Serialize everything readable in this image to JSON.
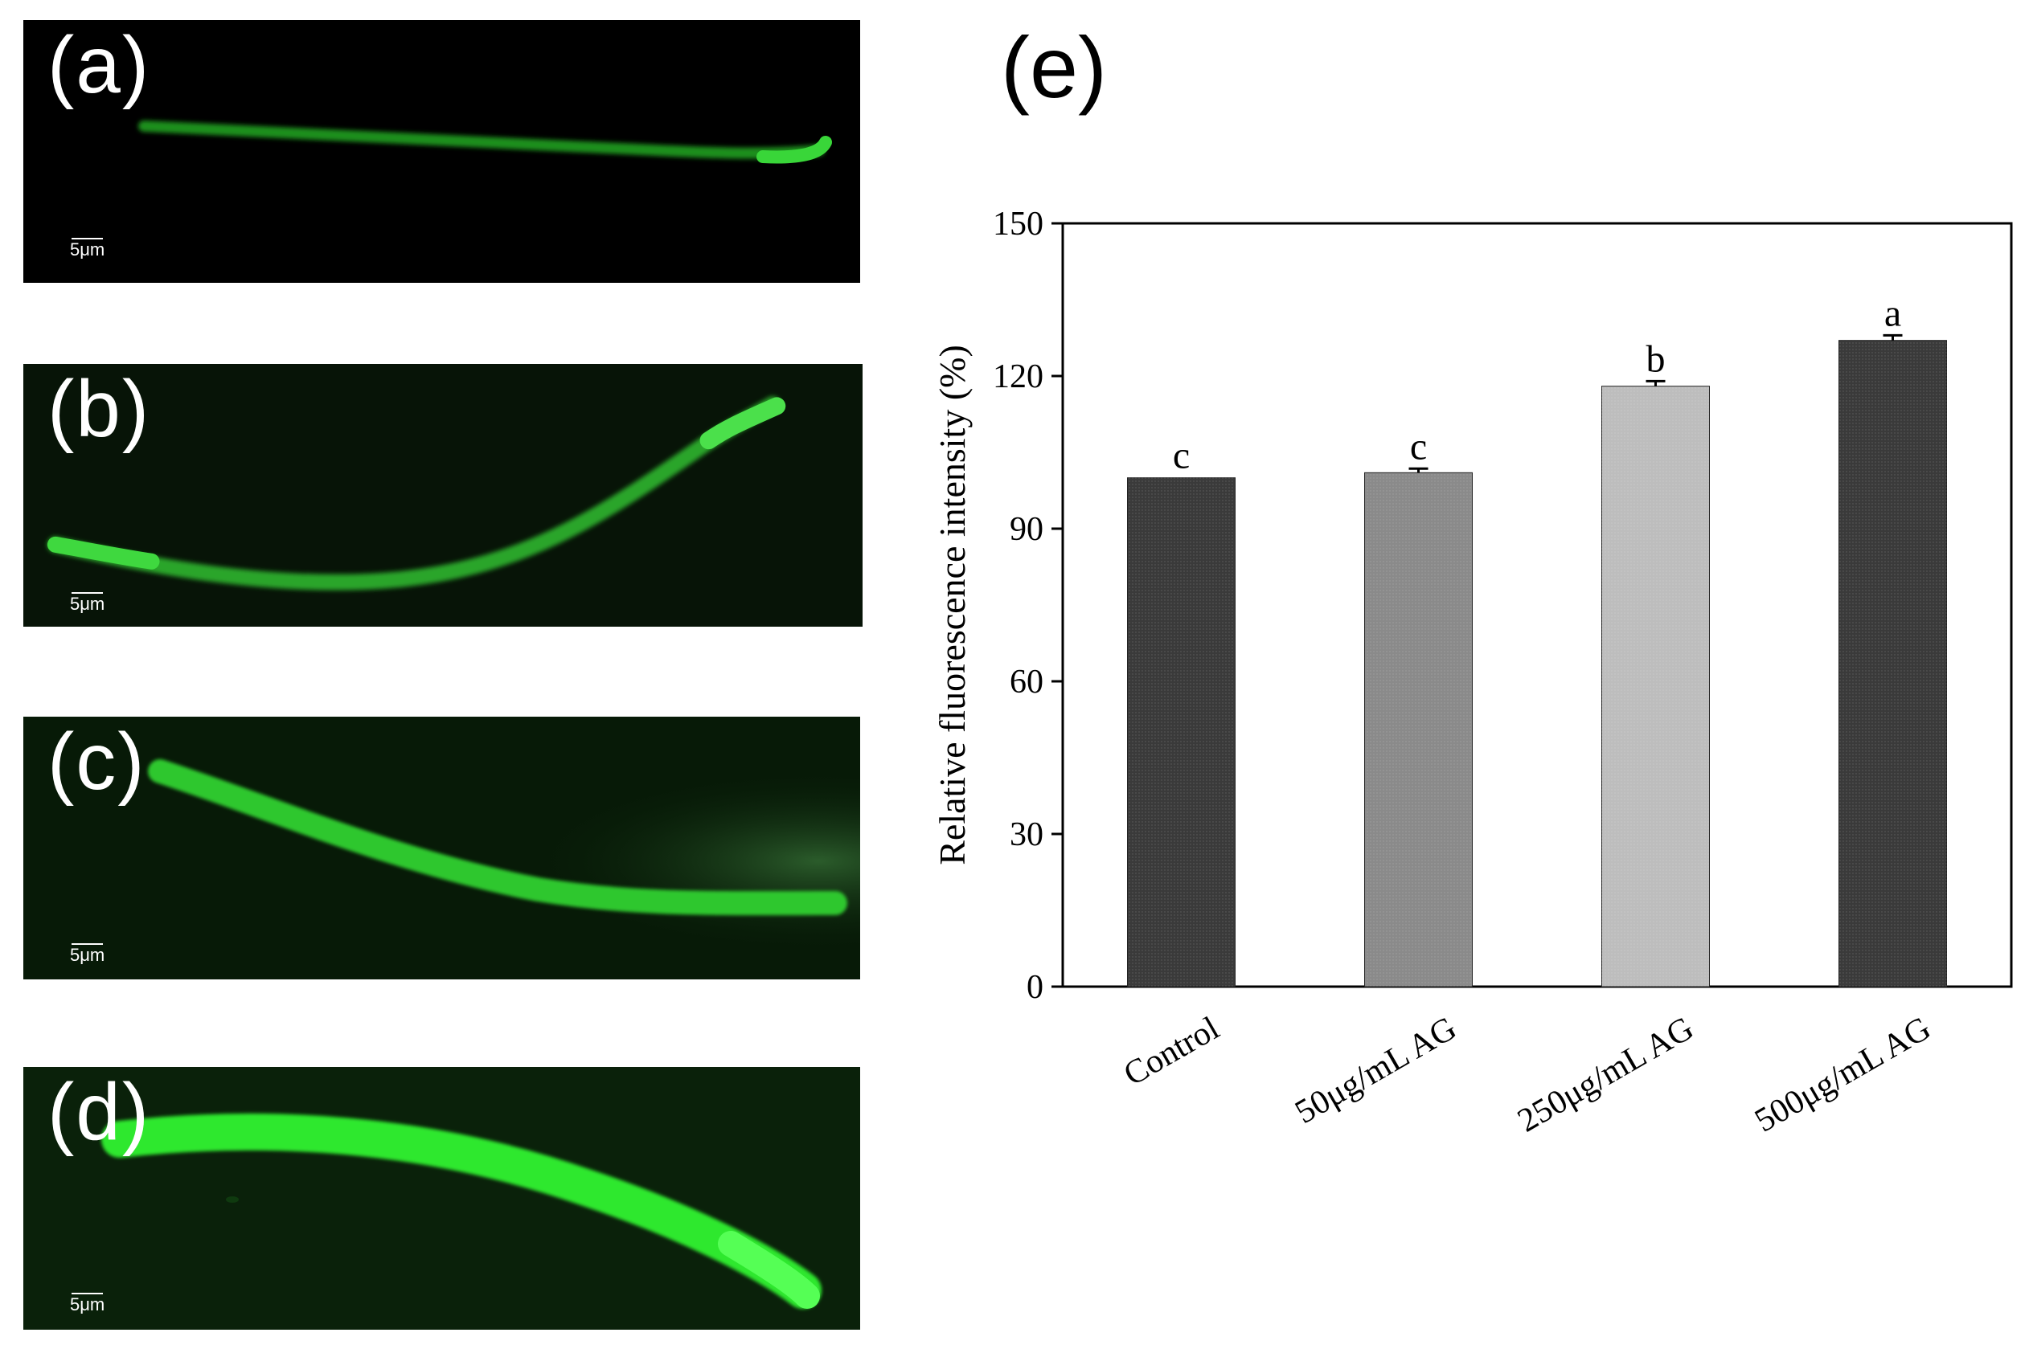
{
  "panels": [
    {
      "label": "(a)",
      "scale": "5μm"
    },
    {
      "label": "(b)",
      "scale": "5μm"
    },
    {
      "label": "(c)",
      "scale": "5μm"
    },
    {
      "label": "(d)",
      "scale": "5μm"
    }
  ],
  "chart_label": "(e)",
  "chart_data": {
    "type": "bar",
    "categories": [
      "Control",
      "50μg/mL AG",
      "250μg/mL AG",
      "500μg/mL AG"
    ],
    "values": [
      100,
      101,
      118,
      127
    ],
    "errors": [
      0,
      0.8,
      1.0,
      1.0
    ],
    "significance": [
      "c",
      "c",
      "b",
      "a"
    ],
    "bar_colors": [
      "#3a3a3a",
      "#8a8a8a",
      "#bdbdbd",
      "#3a3a3a"
    ],
    "ylabel": "Relative fluorescence intensity (%)",
    "xlabel": "",
    "ylim": [
      0,
      150
    ],
    "yticks": [
      0,
      30,
      60,
      90,
      120,
      150
    ],
    "grid": false
  }
}
